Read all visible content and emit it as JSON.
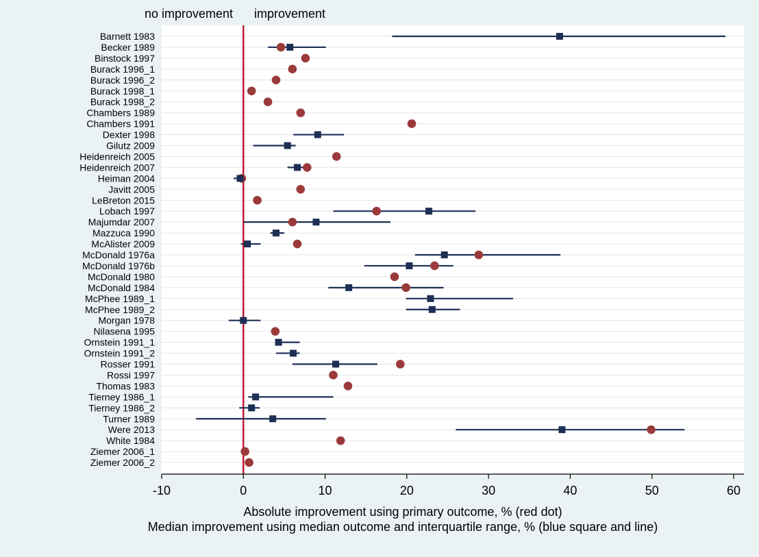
{
  "chart_data": {
    "type": "scatter",
    "header_left": "no improvement",
    "header_right": "improvement",
    "xlabel": "Absolute improvement using primary outcome, % (red dot)",
    "xlabel2": "Median improvement using median outcome and interquartile range, % (blue square and line)",
    "xlim": [
      -10,
      60
    ],
    "xticks": [
      -10,
      0,
      10,
      20,
      30,
      40,
      50,
      60
    ],
    "reference_x": 0,
    "grid": true,
    "colors": {
      "background": "#eaf2f3",
      "plot_background": "#ffffff",
      "reference_line": "#c0102e",
      "red_dot": "#9b3a3a",
      "blue_square": "#1d2f54",
      "grid": "#e4e4e4"
    },
    "series": [
      {
        "name": "red dot"
      },
      {
        "name": "blue square and line"
      }
    ],
    "studies": [
      {
        "label": "Barnett 1983",
        "red": null,
        "median": 38.7,
        "low": 18.2,
        "high": 59.0
      },
      {
        "label": "Becker 1989",
        "red": 4.6,
        "median": 5.7,
        "low": 3.0,
        "high": 10.1
      },
      {
        "label": "Binstock 1997",
        "red": 7.6,
        "median": null,
        "low": null,
        "high": null
      },
      {
        "label": "Burack 1996_1",
        "red": 6.0,
        "median": null,
        "low": null,
        "high": null
      },
      {
        "label": "Burack 1996_2",
        "red": 4.0,
        "median": null,
        "low": null,
        "high": null
      },
      {
        "label": "Burack 1998_1",
        "red": 1.0,
        "median": null,
        "low": null,
        "high": null
      },
      {
        "label": "Burack 1998_2",
        "red": 3.0,
        "median": null,
        "low": null,
        "high": null
      },
      {
        "label": "Chambers 1989",
        "red": 7.0,
        "median": null,
        "low": null,
        "high": null
      },
      {
        "label": "Chambers 1991",
        "red": 20.6,
        "median": null,
        "low": null,
        "high": null
      },
      {
        "label": "Dexter 1998",
        "red": null,
        "median": 9.1,
        "low": 6.1,
        "high": 12.3
      },
      {
        "label": "Gilutz 2009",
        "red": null,
        "median": 5.4,
        "low": 1.2,
        "high": 6.4
      },
      {
        "label": "Heidenreich 2005",
        "red": 11.4,
        "median": null,
        "low": null,
        "high": null
      },
      {
        "label": "Heidenreich 2007",
        "red": 7.8,
        "median": 6.6,
        "low": 5.4,
        "high": 7.8
      },
      {
        "label": "Heiman 2004",
        "red": -0.2,
        "median": -0.4,
        "low": -1.2,
        "high": 0.1
      },
      {
        "label": "Javitt 2005",
        "red": 7.0,
        "median": null,
        "low": null,
        "high": null
      },
      {
        "label": "LeBreton 2015",
        "red": 1.7,
        "median": null,
        "low": null,
        "high": null
      },
      {
        "label": "Lobach 1997",
        "red": 16.3,
        "median": 22.7,
        "low": 11.0,
        "high": 28.4
      },
      {
        "label": "Majumdar 2007",
        "red": 6.0,
        "median": 8.9,
        "low": 0.0,
        "high": 18.0
      },
      {
        "label": "Mazzuca 1990",
        "red": null,
        "median": 4.0,
        "low": 3.3,
        "high": 5.0
      },
      {
        "label": "McAlister 2009",
        "red": 6.6,
        "median": 0.5,
        "low": -0.3,
        "high": 2.1
      },
      {
        "label": "McDonald 1976a",
        "red": 28.8,
        "median": 24.6,
        "low": 21.0,
        "high": 38.8
      },
      {
        "label": "McDonald 1976b",
        "red": 23.4,
        "median": 20.3,
        "low": 14.8,
        "high": 25.7
      },
      {
        "label": "McDonald 1980",
        "red": 18.5,
        "median": null,
        "low": null,
        "high": null
      },
      {
        "label": "McDonald 1984",
        "red": 19.9,
        "median": 12.9,
        "low": 10.4,
        "high": 24.5
      },
      {
        "label": "McPhee 1989_1",
        "red": null,
        "median": 22.9,
        "low": 19.9,
        "high": 33.0
      },
      {
        "label": "McPhee 1989_2",
        "red": null,
        "median": 23.1,
        "low": 19.9,
        "high": 26.5
      },
      {
        "label": "Morgan 1978",
        "red": null,
        "median": 0.0,
        "low": -1.8,
        "high": 2.1
      },
      {
        "label": "Nilasena 1995",
        "red": 3.9,
        "median": null,
        "low": null,
        "high": null
      },
      {
        "label": "Ornstein 1991_1",
        "red": null,
        "median": 4.3,
        "low": 4.0,
        "high": 6.9
      },
      {
        "label": "Ornstein 1991_2",
        "red": null,
        "median": 6.1,
        "low": 4.0,
        "high": 6.9
      },
      {
        "label": "Rosser 1991",
        "red": 19.2,
        "median": 11.3,
        "low": 6.0,
        "high": 16.4
      },
      {
        "label": "Rossi 1997",
        "red": 11.0,
        "median": null,
        "low": null,
        "high": null
      },
      {
        "label": "Thomas 1983",
        "red": 12.8,
        "median": null,
        "low": null,
        "high": null
      },
      {
        "label": "Tierney 1986_1",
        "red": null,
        "median": 1.5,
        "low": 0.6,
        "high": 11.0
      },
      {
        "label": "Tierney 1986_2",
        "red": null,
        "median": 1.0,
        "low": -0.5,
        "high": 2.0
      },
      {
        "label": "Turner 1989",
        "red": null,
        "median": 3.6,
        "low": -5.8,
        "high": 10.1
      },
      {
        "label": "Were 2013",
        "red": 49.9,
        "median": 39.0,
        "low": 26.0,
        "high": 54.0
      },
      {
        "label": "White 1984",
        "red": 11.9,
        "median": null,
        "low": null,
        "high": null
      },
      {
        "label": "Ziemer 2006_1",
        "red": 0.2,
        "median": null,
        "low": null,
        "high": null
      },
      {
        "label": "Ziemer 2006_2",
        "red": 0.7,
        "median": null,
        "low": null,
        "high": null
      }
    ]
  }
}
